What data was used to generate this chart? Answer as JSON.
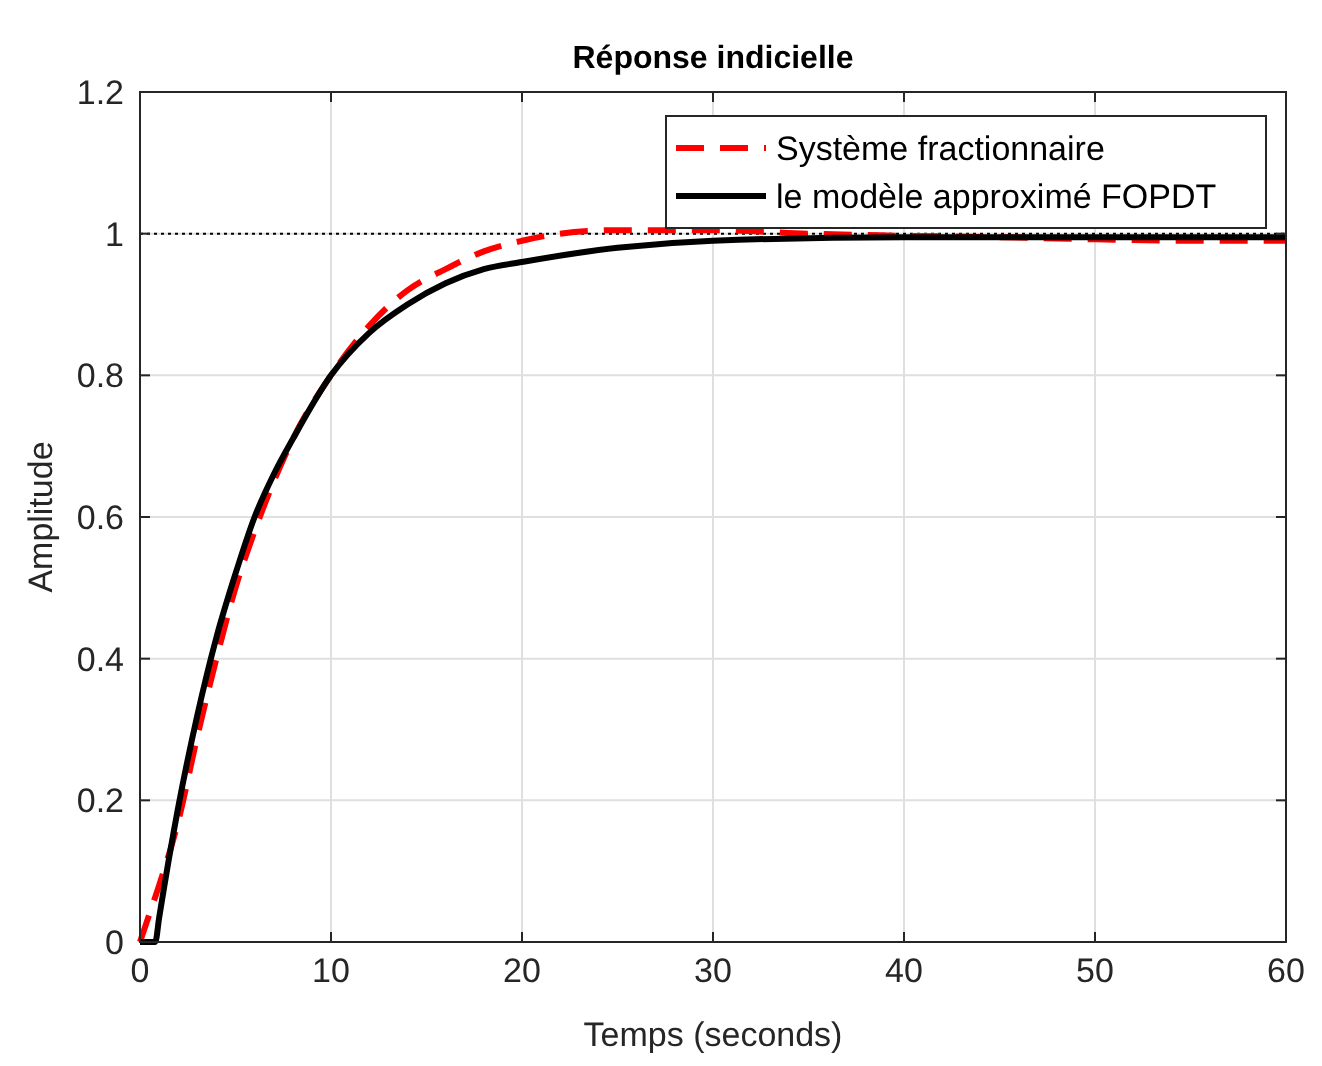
{
  "chart_data": {
    "type": "line",
    "title": "Réponse indicielle",
    "xlabel": "Temps (seconds)",
    "ylabel": "Amplitude",
    "xlim": [
      0,
      60
    ],
    "ylim": [
      0,
      1.2
    ],
    "xticks": [
      0,
      10,
      20,
      30,
      40,
      50,
      60
    ],
    "yticks": [
      0,
      0.2,
      0.4,
      0.6,
      0.8,
      1,
      1.2
    ],
    "grid": true,
    "legend": "top right",
    "ref_lines": [
      {
        "axis": "y",
        "value": 1,
        "color": "#000000",
        "line_style": "dotted"
      }
    ],
    "series": [
      {
        "name": "Système fractionnaire",
        "color": "#ff0000",
        "line_style": "dashed",
        "x": [
          0,
          0.5,
          1,
          2,
          3,
          4,
          5,
          6,
          7,
          8,
          10,
          12,
          14,
          16,
          18,
          20,
          22,
          25,
          30,
          35,
          40,
          45,
          50,
          55,
          60
        ],
        "values": [
          0,
          0.04,
          0.08,
          0.17,
          0.29,
          0.4,
          0.5,
          0.58,
          0.65,
          0.71,
          0.8,
          0.87,
          0.92,
          0.95,
          0.975,
          0.99,
          1.0,
          1.005,
          1.005,
          1.0,
          0.997,
          0.995,
          0.992,
          0.99,
          0.99
        ]
      },
      {
        "name": "le modèle approximé FOPDT",
        "color": "#000000",
        "line_style": "solid",
        "x": [
          0,
          0.8,
          1,
          2,
          3,
          4,
          5,
          6,
          7,
          8,
          10,
          12,
          14,
          16,
          18,
          20,
          25,
          30,
          40,
          60
        ],
        "values": [
          0,
          0,
          0.034,
          0.19,
          0.32,
          0.43,
          0.52,
          0.6,
          0.66,
          0.71,
          0.8,
          0.86,
          0.9,
          0.93,
          0.95,
          0.96,
          0.98,
          0.99,
          0.995,
          0.995
        ]
      }
    ]
  }
}
